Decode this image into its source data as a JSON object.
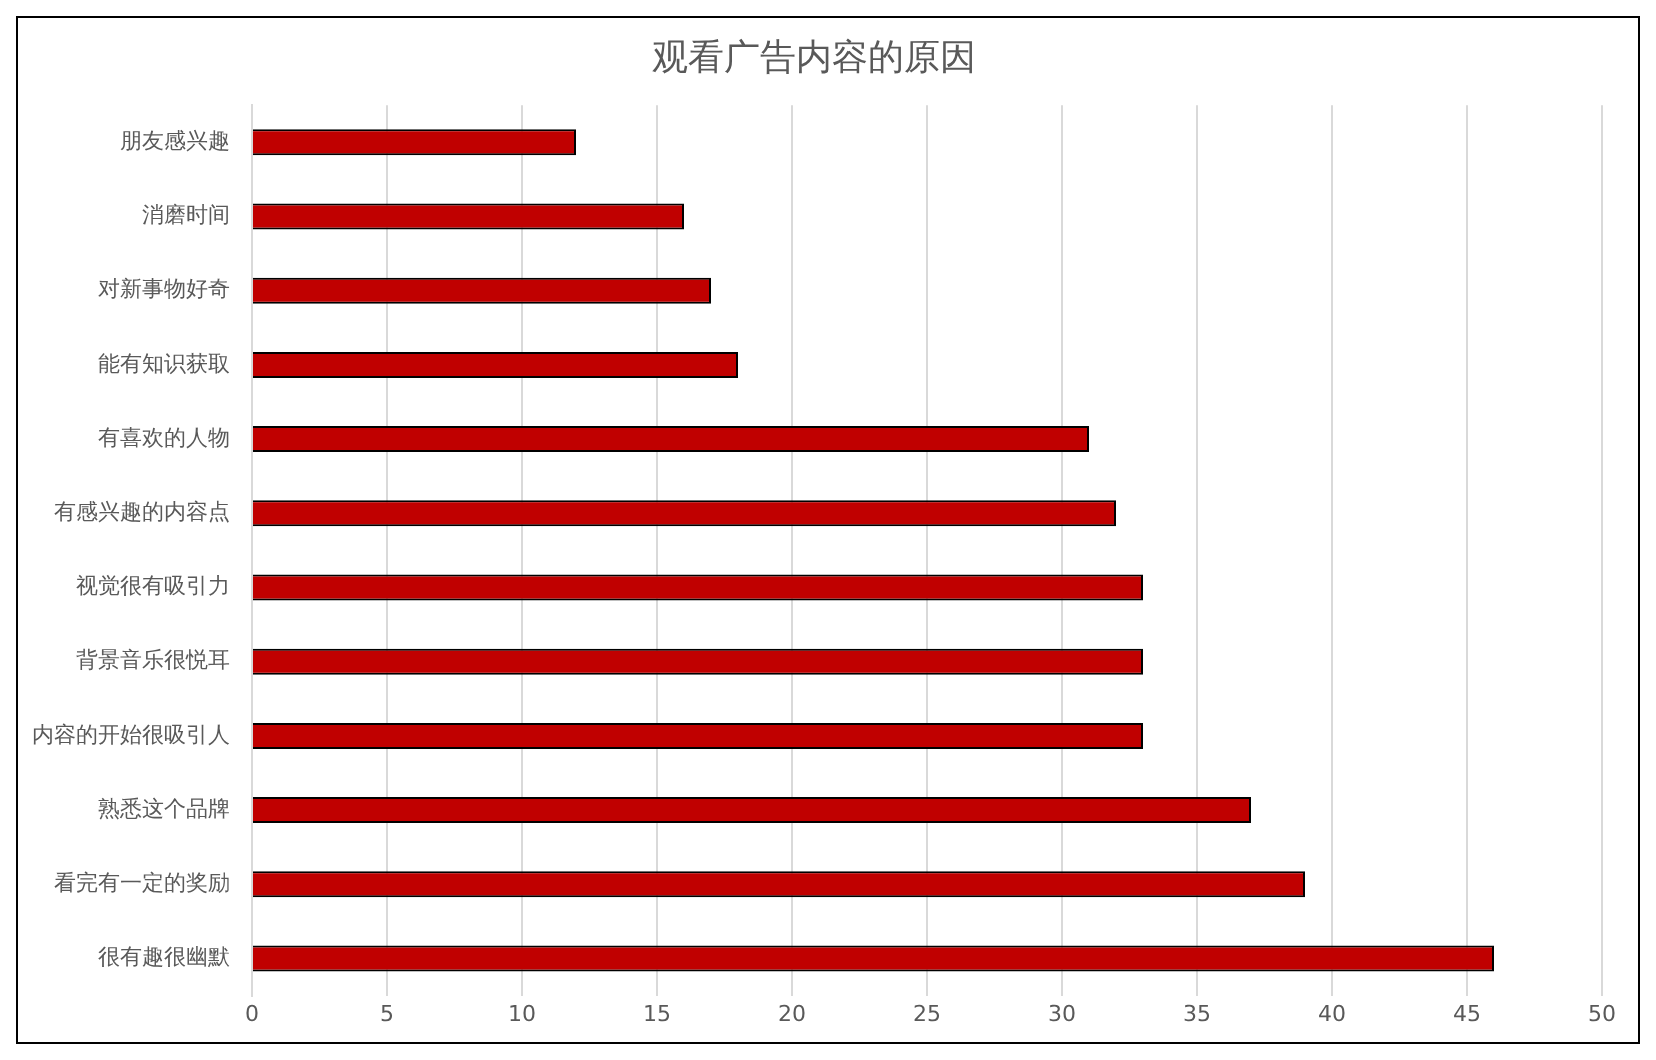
{
  "chart_data": {
    "type": "bar",
    "orientation": "horizontal",
    "title": "观看广告内容的原因",
    "categories": [
      "朋友感兴趣",
      "消磨时间",
      "对新事物好奇",
      "能有知识获取",
      "有喜欢的人物",
      "有感兴趣的内容点",
      "视觉很有吸引力",
      "背景音乐很悦耳",
      "内容的开始很吸引人",
      "熟悉这个品牌",
      "看完有一定的奖励",
      "很有趣很幽默"
    ],
    "values": [
      12,
      16,
      17,
      18,
      31,
      32,
      33,
      33,
      33,
      37,
      39,
      46
    ],
    "color": "#c00000",
    "xlim": [
      0,
      50
    ],
    "xticks": [
      0,
      5,
      10,
      15,
      20,
      25,
      30,
      35,
      40,
      45,
      50
    ],
    "grid": "x",
    "legend": false
  }
}
